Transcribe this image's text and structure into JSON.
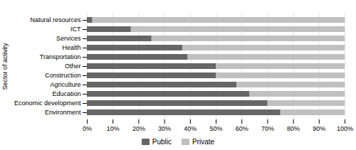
{
  "chart_data": {
    "type": "bar",
    "orientation": "horizontal",
    "categories": [
      "Environment",
      "Economic development",
      "Education",
      "Agriculture",
      "Construction",
      "Other",
      "Transportation",
      "Health",
      "Services",
      "ICT",
      "Natural resources"
    ],
    "series": [
      {
        "name": "Public",
        "color": "#666666",
        "values": [
          75,
          70,
          63,
          58,
          50,
          50,
          39,
          37,
          25,
          17,
          2
        ]
      },
      {
        "name": "Private",
        "color": "#c0c0c0",
        "values": [
          100,
          100,
          100,
          100,
          100,
          100,
          100,
          100,
          100,
          100,
          100
        ]
      }
    ],
    "stacked": false,
    "ylabel": "Sector of activity",
    "xlim": [
      0,
      100
    ],
    "xticks": [
      {
        "value": 0,
        "label": "0%"
      },
      {
        "value": 10,
        "label": "10%"
      },
      {
        "value": 20,
        "label": "20%"
      },
      {
        "value": 30,
        "label": "30%"
      },
      {
        "value": 40,
        "label": "40%"
      },
      {
        "value": 50,
        "label": "50%"
      },
      {
        "value": 60,
        "label": "60%"
      },
      {
        "value": 70,
        "label": "70%"
      },
      {
        "value": 80,
        "label": "80%"
      },
      {
        "value": 90,
        "label": "90%"
      },
      {
        "value": 100,
        "label": "100%"
      }
    ],
    "grid": true,
    "legend": "bottom"
  }
}
